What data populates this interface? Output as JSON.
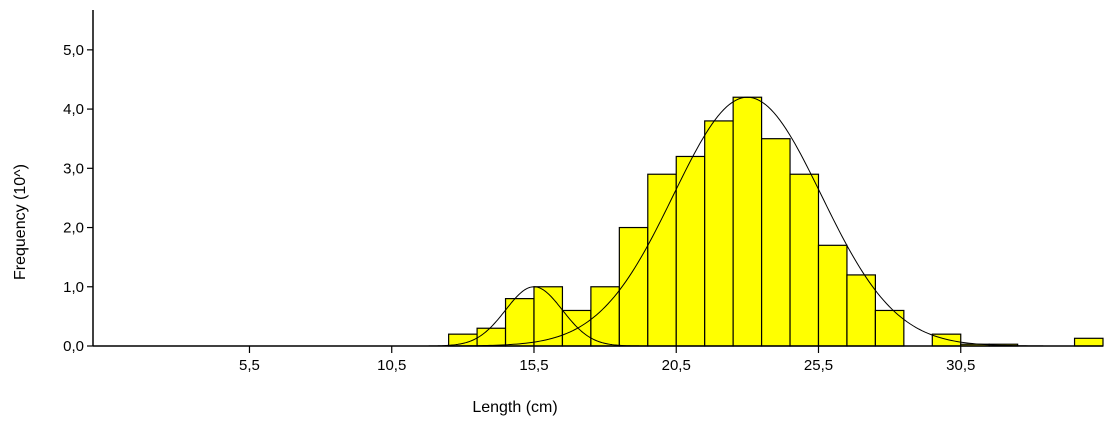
{
  "chart_data": {
    "type": "bar",
    "xlabel": "Length (cm)",
    "ylabel": "Frequency (10^)",
    "xlim": [
      0,
      35.5
    ],
    "ylim": [
      0,
      5.2
    ],
    "x_ticks": [
      5.5,
      10.5,
      15.5,
      20.5,
      25.5,
      30.5
    ],
    "x_tick_labels": [
      "5,5",
      "10,5",
      "15,5",
      "20,5",
      "25,5",
      "30,5"
    ],
    "y_ticks": [
      0,
      1,
      2,
      3,
      4,
      5
    ],
    "y_tick_labels": [
      "0,0",
      "1,0",
      "2,0",
      "3,0",
      "4,0",
      "5,0"
    ],
    "bin_width": 1,
    "bins": [
      {
        "x": 13,
        "value": 0.2
      },
      {
        "x": 14,
        "value": 0.3
      },
      {
        "x": 15,
        "value": 0.8
      },
      {
        "x": 16,
        "value": 1.0
      },
      {
        "x": 17,
        "value": 0.6
      },
      {
        "x": 18,
        "value": 1.0
      },
      {
        "x": 19,
        "value": 2.0
      },
      {
        "x": 20,
        "value": 2.9
      },
      {
        "x": 21,
        "value": 3.2
      },
      {
        "x": 22,
        "value": 3.8
      },
      {
        "x": 23,
        "value": 4.2
      },
      {
        "x": 24,
        "value": 3.5
      },
      {
        "x": 25,
        "value": 2.9
      },
      {
        "x": 26,
        "value": 1.7
      },
      {
        "x": 27,
        "value": 1.2
      },
      {
        "x": 28,
        "value": 0.6
      },
      {
        "x": 30,
        "value": 0.2
      },
      {
        "x": 31,
        "value": 0.03
      },
      {
        "x": 32,
        "value": 0.03
      },
      {
        "x": 35,
        "value": 0.13
      }
    ],
    "fitted_curves": [
      {
        "mean": 15.5,
        "sd": 1.0,
        "peak": 1.0
      },
      {
        "mean": 23.0,
        "sd": 2.6,
        "peak": 4.2
      }
    ],
    "bar_color": "#ffff00",
    "grid": false,
    "legend": "none"
  }
}
